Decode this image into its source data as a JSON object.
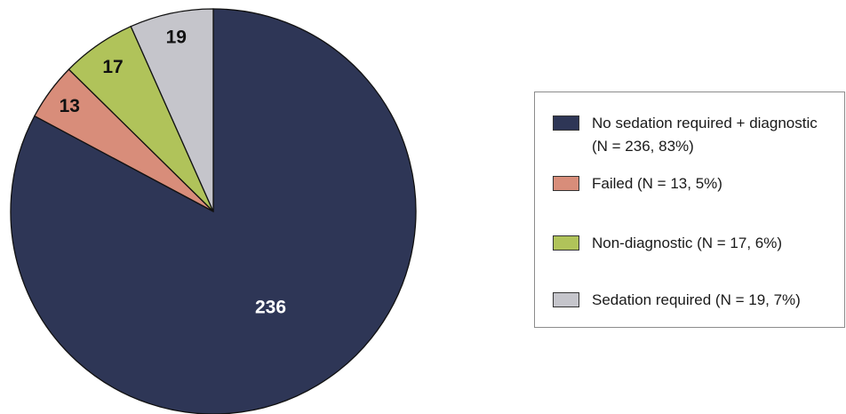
{
  "chart_data": {
    "type": "pie",
    "title": "",
    "start_angle_deg": 0,
    "direction": "clockwise",
    "slices": [
      {
        "label": "236",
        "value": 236,
        "color": "#2e3656",
        "label_color": "#ffffff",
        "legend": "No sedation required + diagnostic (N = 236, 83%)"
      },
      {
        "label": "13",
        "value": 13,
        "color": "#d88d7a",
        "label_color": "#111111",
        "legend": "Failed (N = 13, 5%)"
      },
      {
        "label": "17",
        "value": 17,
        "color": "#b0c35a",
        "label_color": "#111111",
        "legend": "Non-diagnostic (N = 17, 6%)"
      },
      {
        "label": "19",
        "value": 19,
        "color": "#c5c5cb",
        "label_color": "#111111",
        "legend": "Sedation required (N = 19, 7%)"
      }
    ],
    "legend_position": "right"
  }
}
